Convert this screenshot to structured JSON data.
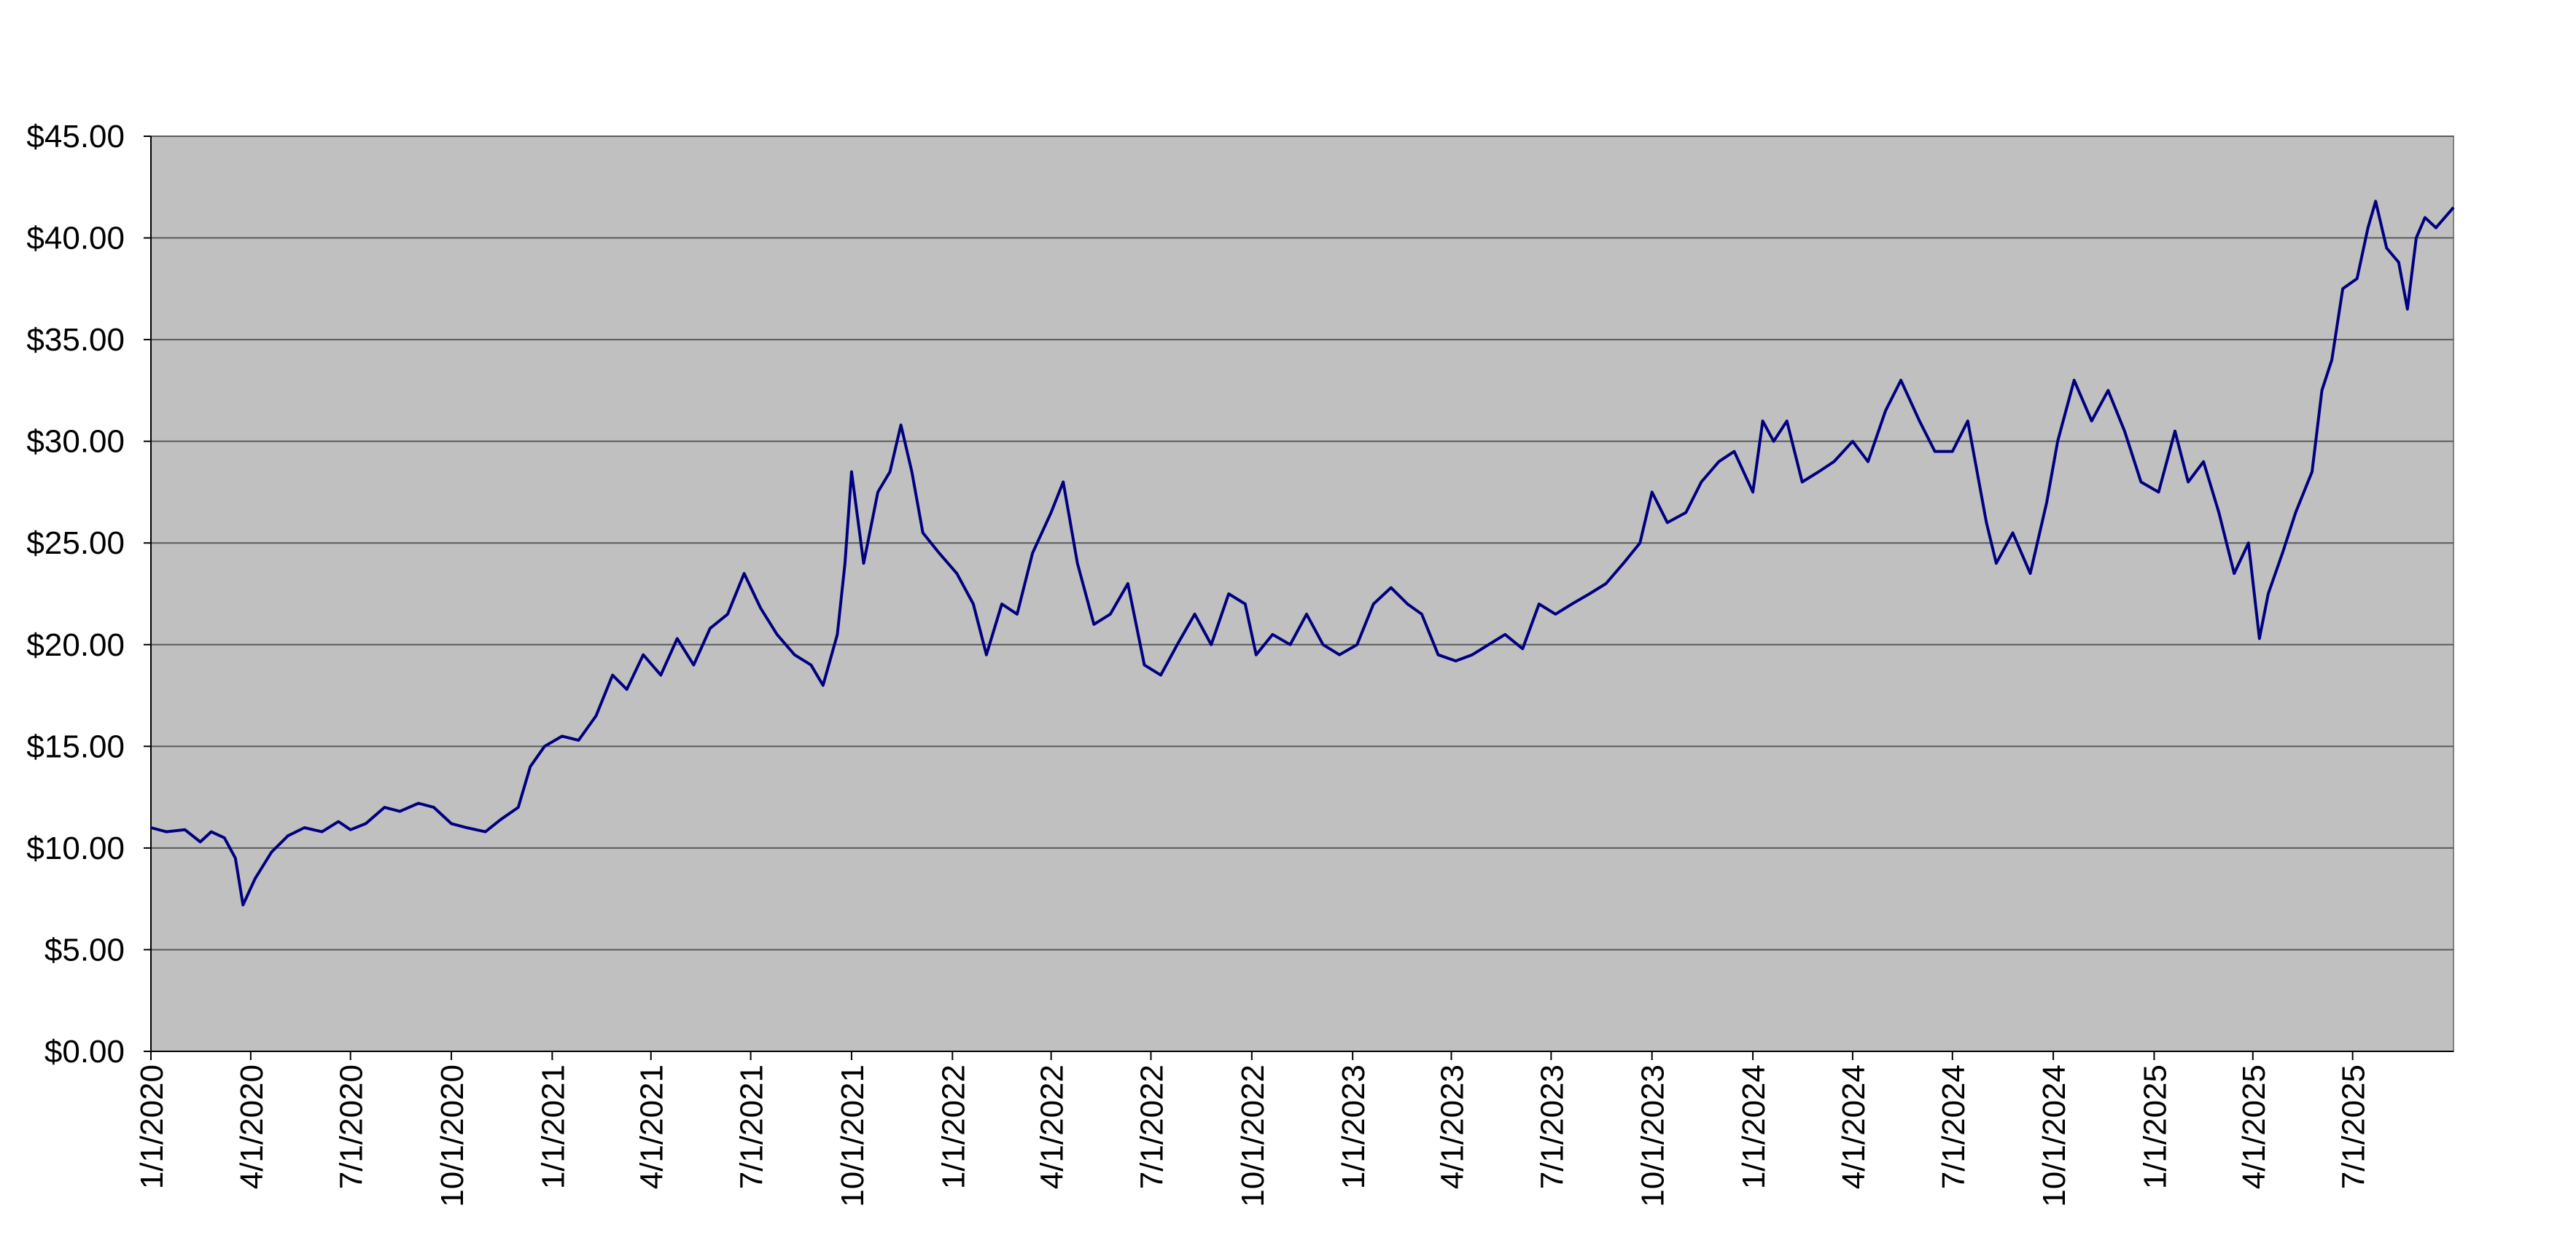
{
  "chart_data": {
    "type": "line",
    "title": "",
    "xlabel": "",
    "ylabel": "",
    "ylim": [
      0,
      45
    ],
    "xlim": [
      "2020-01-01",
      "2025-10-01"
    ],
    "grid": true,
    "legend": "none",
    "colors": {
      "line": "#000080",
      "plot_bg": "#c0c0c0",
      "gridline": "#5a5a5a"
    },
    "y_ticks": [
      {
        "value": 0,
        "label": "$0.00"
      },
      {
        "value": 5,
        "label": "$5.00"
      },
      {
        "value": 10,
        "label": "$10.00"
      },
      {
        "value": 15,
        "label": "$15.00"
      },
      {
        "value": 20,
        "label": "$20.00"
      },
      {
        "value": 25,
        "label": "$25.00"
      },
      {
        "value": 30,
        "label": "$30.00"
      },
      {
        "value": 35,
        "label": "$35.00"
      },
      {
        "value": 40,
        "label": "$40.00"
      },
      {
        "value": 45,
        "label": "$45.00"
      }
    ],
    "x_ticks": [
      {
        "date": "2020-01-01",
        "label": "1/1/2020"
      },
      {
        "date": "2020-04-01",
        "label": "4/1/2020"
      },
      {
        "date": "2020-07-01",
        "label": "7/1/2020"
      },
      {
        "date": "2020-10-01",
        "label": "10/1/2020"
      },
      {
        "date": "2021-01-01",
        "label": "1/1/2021"
      },
      {
        "date": "2021-04-01",
        "label": "4/1/2021"
      },
      {
        "date": "2021-07-01",
        "label": "7/1/2021"
      },
      {
        "date": "2021-10-01",
        "label": "10/1/2021"
      },
      {
        "date": "2022-01-01",
        "label": "1/1/2022"
      },
      {
        "date": "2022-04-01",
        "label": "4/1/2022"
      },
      {
        "date": "2022-07-01",
        "label": "7/1/2022"
      },
      {
        "date": "2022-10-01",
        "label": "10/1/2022"
      },
      {
        "date": "2023-01-01",
        "label": "1/1/2023"
      },
      {
        "date": "2023-04-01",
        "label": "4/1/2023"
      },
      {
        "date": "2023-07-01",
        "label": "7/1/2023"
      },
      {
        "date": "2023-10-01",
        "label": "10/1/2023"
      },
      {
        "date": "2024-01-01",
        "label": "1/1/2024"
      },
      {
        "date": "2024-04-01",
        "label": "4/1/2024"
      },
      {
        "date": "2024-07-01",
        "label": "7/1/2024"
      },
      {
        "date": "2024-10-01",
        "label": "10/1/2024"
      },
      {
        "date": "2025-01-01",
        "label": "1/1/2025"
      },
      {
        "date": "2025-04-01",
        "label": "4/1/2025"
      },
      {
        "date": "2025-07-01",
        "label": "7/1/2025"
      }
    ],
    "series": [
      {
        "points": [
          [
            "2020-01-01",
            11.0
          ],
          [
            "2020-01-15",
            10.8
          ],
          [
            "2020-02-01",
            10.9
          ],
          [
            "2020-02-15",
            10.3
          ],
          [
            "2020-02-25",
            10.8
          ],
          [
            "2020-03-08",
            10.5
          ],
          [
            "2020-03-18",
            9.5
          ],
          [
            "2020-03-25",
            7.2
          ],
          [
            "2020-04-05",
            8.5
          ],
          [
            "2020-04-20",
            9.8
          ],
          [
            "2020-05-05",
            10.6
          ],
          [
            "2020-05-20",
            11.0
          ],
          [
            "2020-06-05",
            10.8
          ],
          [
            "2020-06-20",
            11.3
          ],
          [
            "2020-07-01",
            10.9
          ],
          [
            "2020-07-15",
            11.2
          ],
          [
            "2020-08-01",
            12.0
          ],
          [
            "2020-08-15",
            11.8
          ],
          [
            "2020-09-01",
            12.2
          ],
          [
            "2020-09-15",
            12.0
          ],
          [
            "2020-10-01",
            11.2
          ],
          [
            "2020-10-15",
            11.0
          ],
          [
            "2020-11-01",
            10.8
          ],
          [
            "2020-11-15",
            11.4
          ],
          [
            "2020-12-01",
            12.0
          ],
          [
            "2020-12-12",
            14.0
          ],
          [
            "2020-12-25",
            15.0
          ],
          [
            "2021-01-10",
            15.5
          ],
          [
            "2021-01-25",
            15.3
          ],
          [
            "2021-02-10",
            16.5
          ],
          [
            "2021-02-25",
            18.5
          ],
          [
            "2021-03-10",
            17.8
          ],
          [
            "2021-03-25",
            19.5
          ],
          [
            "2021-04-10",
            18.5
          ],
          [
            "2021-04-25",
            20.3
          ],
          [
            "2021-05-10",
            19.0
          ],
          [
            "2021-05-25",
            20.8
          ],
          [
            "2021-06-10",
            21.5
          ],
          [
            "2021-06-25",
            23.5
          ],
          [
            "2021-07-10",
            21.8
          ],
          [
            "2021-07-25",
            20.5
          ],
          [
            "2021-08-10",
            19.5
          ],
          [
            "2021-08-25",
            19.0
          ],
          [
            "2021-09-05",
            18.0
          ],
          [
            "2021-09-18",
            20.5
          ],
          [
            "2021-09-25",
            24.0
          ],
          [
            "2021-10-01",
            28.5
          ],
          [
            "2021-10-12",
            24.0
          ],
          [
            "2021-10-25",
            27.5
          ],
          [
            "2021-11-05",
            28.5
          ],
          [
            "2021-11-15",
            30.8
          ],
          [
            "2021-11-25",
            28.5
          ],
          [
            "2021-12-05",
            25.5
          ],
          [
            "2021-12-20",
            24.5
          ],
          [
            "2022-01-05",
            23.5
          ],
          [
            "2022-01-20",
            22.0
          ],
          [
            "2022-02-01",
            19.5
          ],
          [
            "2022-02-15",
            22.0
          ],
          [
            "2022-03-01",
            21.5
          ],
          [
            "2022-03-15",
            24.5
          ],
          [
            "2022-04-01",
            26.5
          ],
          [
            "2022-04-12",
            28.0
          ],
          [
            "2022-04-25",
            24.0
          ],
          [
            "2022-05-10",
            21.0
          ],
          [
            "2022-05-25",
            21.5
          ],
          [
            "2022-06-10",
            23.0
          ],
          [
            "2022-06-25",
            19.0
          ],
          [
            "2022-07-10",
            18.5
          ],
          [
            "2022-07-25",
            20.0
          ],
          [
            "2022-08-10",
            21.5
          ],
          [
            "2022-08-25",
            20.0
          ],
          [
            "2022-09-10",
            22.5
          ],
          [
            "2022-09-25",
            22.0
          ],
          [
            "2022-10-05",
            19.5
          ],
          [
            "2022-10-20",
            20.5
          ],
          [
            "2022-11-05",
            20.0
          ],
          [
            "2022-11-20",
            21.5
          ],
          [
            "2022-12-05",
            20.0
          ],
          [
            "2022-12-20",
            19.5
          ],
          [
            "2023-01-05",
            20.0
          ],
          [
            "2023-01-20",
            22.0
          ],
          [
            "2023-02-05",
            22.8
          ],
          [
            "2023-02-20",
            22.0
          ],
          [
            "2023-03-05",
            21.5
          ],
          [
            "2023-03-20",
            19.5
          ],
          [
            "2023-04-05",
            19.2
          ],
          [
            "2023-04-20",
            19.5
          ],
          [
            "2023-05-05",
            20.0
          ],
          [
            "2023-05-20",
            20.5
          ],
          [
            "2023-06-05",
            19.8
          ],
          [
            "2023-06-20",
            22.0
          ],
          [
            "2023-07-05",
            21.5
          ],
          [
            "2023-07-20",
            22.0
          ],
          [
            "2023-08-05",
            22.5
          ],
          [
            "2023-08-20",
            23.0
          ],
          [
            "2023-09-05",
            24.0
          ],
          [
            "2023-09-20",
            25.0
          ],
          [
            "2023-10-01",
            27.5
          ],
          [
            "2023-10-15",
            26.0
          ],
          [
            "2023-11-01",
            26.5
          ],
          [
            "2023-11-15",
            28.0
          ],
          [
            "2023-12-01",
            29.0
          ],
          [
            "2023-12-15",
            29.5
          ],
          [
            "2024-01-01",
            27.5
          ],
          [
            "2024-01-10",
            31.0
          ],
          [
            "2024-01-20",
            30.0
          ],
          [
            "2024-02-01",
            31.0
          ],
          [
            "2024-02-15",
            28.0
          ],
          [
            "2024-03-01",
            28.5
          ],
          [
            "2024-03-15",
            29.0
          ],
          [
            "2024-04-01",
            30.0
          ],
          [
            "2024-04-15",
            29.0
          ],
          [
            "2024-05-01",
            31.5
          ],
          [
            "2024-05-15",
            33.0
          ],
          [
            "2024-06-01",
            31.0
          ],
          [
            "2024-06-15",
            29.5
          ],
          [
            "2024-07-01",
            29.5
          ],
          [
            "2024-07-15",
            31.0
          ],
          [
            "2024-08-01",
            26.0
          ],
          [
            "2024-08-10",
            24.0
          ],
          [
            "2024-08-25",
            25.5
          ],
          [
            "2024-09-10",
            23.5
          ],
          [
            "2024-09-25",
            27.0
          ],
          [
            "2024-10-05",
            30.0
          ],
          [
            "2024-10-20",
            33.0
          ],
          [
            "2024-11-05",
            31.0
          ],
          [
            "2024-11-20",
            32.5
          ],
          [
            "2024-12-05",
            30.5
          ],
          [
            "2024-12-20",
            28.0
          ],
          [
            "2025-01-05",
            27.5
          ],
          [
            "2025-01-20",
            30.5
          ],
          [
            "2025-02-01",
            28.0
          ],
          [
            "2025-02-15",
            29.0
          ],
          [
            "2025-03-01",
            26.5
          ],
          [
            "2025-03-15",
            23.5
          ],
          [
            "2025-03-28",
            25.0
          ],
          [
            "2025-04-07",
            20.3
          ],
          [
            "2025-04-15",
            22.5
          ],
          [
            "2025-04-28",
            24.5
          ],
          [
            "2025-05-10",
            26.5
          ],
          [
            "2025-05-25",
            28.5
          ],
          [
            "2025-06-03",
            32.5
          ],
          [
            "2025-06-12",
            34.0
          ],
          [
            "2025-06-22",
            37.5
          ],
          [
            "2025-07-05",
            38.0
          ],
          [
            "2025-07-15",
            40.5
          ],
          [
            "2025-07-22",
            41.8
          ],
          [
            "2025-08-01",
            39.5
          ],
          [
            "2025-08-12",
            38.8
          ],
          [
            "2025-08-20",
            36.5
          ],
          [
            "2025-08-28",
            40.0
          ],
          [
            "2025-09-05",
            41.0
          ],
          [
            "2025-09-15",
            40.5
          ],
          [
            "2025-10-01",
            41.5
          ]
        ]
      }
    ]
  }
}
